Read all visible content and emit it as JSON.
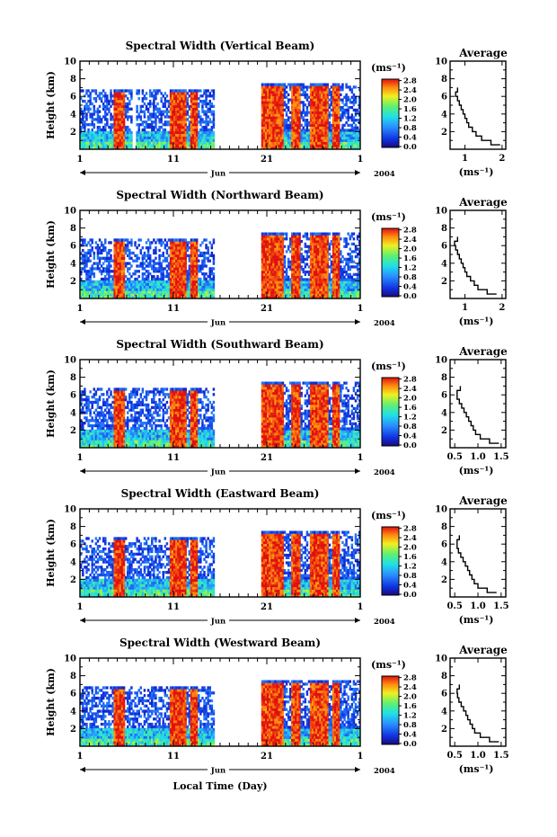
{
  "figure": {
    "xlabel": "Local Time (Day)",
    "year": "2004",
    "month": "Jun",
    "unit_label": "(ms⁻¹)",
    "average_xlabel": "(ms⁻¹)",
    "average_title": "Average"
  },
  "chart_data": [
    {
      "type": "heatmap",
      "title": "Spectral Width (Vertical Beam)",
      "ylabel": "Height (km)",
      "xlabel": "",
      "x_ticks": [
        "1",
        "11",
        "21",
        "1"
      ],
      "y_ticks": [
        "2",
        "4",
        "6",
        "8",
        "10"
      ],
      "ylim": [
        0,
        10
      ],
      "colorbar_ticks": [
        "0.0",
        "0.4",
        "0.8",
        "1.2",
        "1.6",
        "2.0",
        "2.4",
        "2.8"
      ],
      "data_gaps_days": [
        [
          5.6,
          6.0
        ],
        [
          14.5,
          19.3
        ]
      ],
      "top_height_km": [
        6.8,
        7.5
      ],
      "average": {
        "title": "Average",
        "x_ticks": [
          "1",
          "2"
        ],
        "xlim": [
          0.6,
          2.1
        ],
        "y_ticks": [
          "2",
          "4",
          "6",
          "8",
          "10"
        ],
        "heights": [
          0.5,
          1.0,
          1.5,
          2.0,
          2.5,
          3.0,
          3.5,
          4.0,
          4.5,
          5.0,
          5.5,
          6.0,
          6.5,
          7.0
        ],
        "values": [
          1.95,
          1.7,
          1.45,
          1.3,
          1.2,
          1.1,
          1.05,
          1.0,
          0.95,
          0.9,
          0.85,
          0.8,
          0.75,
          0.8
        ]
      }
    },
    {
      "type": "heatmap",
      "title": "Spectral Width (Northward Beam)",
      "ylabel": "Height (km)",
      "xlabel": "",
      "x_ticks": [
        "1",
        "11",
        "21",
        "1"
      ],
      "y_ticks": [
        "2",
        "4",
        "6",
        "8",
        "10"
      ],
      "ylim": [
        0,
        10
      ],
      "colorbar_ticks": [
        "0.0",
        "0.4",
        "0.8",
        "1.2",
        "1.6",
        "2.0",
        "2.4",
        "2.8"
      ],
      "data_gaps_days": [
        [
          14.5,
          19.3
        ]
      ],
      "top_height_km": [
        6.8,
        7.5
      ],
      "average": {
        "title": "Average",
        "x_ticks": [
          "1",
          "2"
        ],
        "xlim": [
          0.6,
          2.1
        ],
        "y_ticks": [
          "2",
          "4",
          "6",
          "8",
          "10"
        ],
        "heights": [
          0.5,
          1.0,
          1.5,
          2.0,
          2.5,
          3.0,
          3.5,
          4.0,
          4.5,
          5.0,
          5.5,
          6.0,
          6.5,
          7.0
        ],
        "values": [
          1.85,
          1.6,
          1.35,
          1.25,
          1.15,
          1.05,
          1.0,
          0.95,
          0.9,
          0.85,
          0.8,
          0.75,
          0.72,
          0.8
        ]
      }
    },
    {
      "type": "heatmap",
      "title": "Spectral Width (Southward Beam)",
      "ylabel": "Height (km)",
      "xlabel": "",
      "x_ticks": [
        "1",
        "11",
        "21",
        "1"
      ],
      "y_ticks": [
        "2",
        "4",
        "6",
        "8",
        "10"
      ],
      "ylim": [
        0,
        10
      ],
      "colorbar_ticks": [
        "0.0",
        "0.4",
        "0.8",
        "1.2",
        "1.6",
        "2.0",
        "2.4",
        "2.8"
      ],
      "data_gaps_days": [
        [
          14.5,
          19.3
        ]
      ],
      "top_height_km": [
        6.8,
        7.5
      ],
      "average": {
        "title": "Average",
        "x_ticks": [
          "0.5",
          "1.0",
          "1.5"
        ],
        "xlim": [
          0.4,
          1.6
        ],
        "y_ticks": [
          "2",
          "4",
          "6",
          "8",
          "10"
        ],
        "heights": [
          0.5,
          1.0,
          1.5,
          2.0,
          2.5,
          3.0,
          3.5,
          4.0,
          4.5,
          5.0,
          5.5,
          6.0,
          6.5,
          7.0
        ],
        "values": [
          1.45,
          1.25,
          1.05,
          0.95,
          0.9,
          0.85,
          0.8,
          0.75,
          0.7,
          0.65,
          0.6,
          0.55,
          0.55,
          0.62
        ]
      }
    },
    {
      "type": "heatmap",
      "title": "Spectral Width (Eastward Beam)",
      "ylabel": "Height (km)",
      "xlabel": "",
      "x_ticks": [
        "1",
        "11",
        "21",
        "1"
      ],
      "y_ticks": [
        "2",
        "4",
        "6",
        "8",
        "10"
      ],
      "ylim": [
        0,
        10
      ],
      "colorbar_ticks": [
        "0.0",
        "0.4",
        "0.8",
        "1.2",
        "1.6",
        "2.0",
        "2.4",
        "2.8"
      ],
      "data_gaps_days": [
        [
          14.5,
          19.3
        ]
      ],
      "top_height_km": [
        6.8,
        7.5
      ],
      "average": {
        "title": "Average",
        "x_ticks": [
          "0.5",
          "1.0",
          "1.5"
        ],
        "xlim": [
          0.4,
          1.6
        ],
        "y_ticks": [
          "2",
          "4",
          "6",
          "8",
          "10"
        ],
        "heights": [
          0.5,
          1.0,
          1.5,
          2.0,
          2.5,
          3.0,
          3.5,
          4.0,
          4.5,
          5.0,
          5.5,
          6.0,
          6.5,
          7.0
        ],
        "values": [
          1.4,
          1.2,
          1.0,
          0.92,
          0.87,
          0.82,
          0.78,
          0.73,
          0.68,
          0.63,
          0.58,
          0.55,
          0.55,
          0.6
        ]
      }
    },
    {
      "type": "heatmap",
      "title": "Spectral Width (Westward Beam)",
      "ylabel": "Height (km)",
      "xlabel": "Local Time (Day)",
      "x_ticks": [
        "1",
        "11",
        "21",
        "1"
      ],
      "y_ticks": [
        "2",
        "4",
        "6",
        "8",
        "10"
      ],
      "ylim": [
        0,
        10
      ],
      "colorbar_ticks": [
        "0.0",
        "0.4",
        "0.8",
        "1.2",
        "1.6",
        "2.0",
        "2.4",
        "2.8"
      ],
      "data_gaps_days": [
        [
          14.5,
          19.3
        ]
      ],
      "top_height_km": [
        6.8,
        7.5
      ],
      "average": {
        "title": "Average",
        "x_ticks": [
          "0.5",
          "1.0",
          "1.5"
        ],
        "xlim": [
          0.4,
          1.6
        ],
        "y_ticks": [
          "2",
          "4",
          "6",
          "8",
          "10"
        ],
        "heights": [
          0.5,
          1.0,
          1.5,
          2.0,
          2.5,
          3.0,
          3.5,
          4.0,
          4.5,
          5.0,
          5.5,
          6.0,
          6.5,
          7.0
        ],
        "values": [
          1.45,
          1.25,
          1.05,
          0.93,
          0.88,
          0.83,
          0.78,
          0.74,
          0.69,
          0.64,
          0.59,
          0.56,
          0.55,
          0.6
        ]
      }
    }
  ]
}
